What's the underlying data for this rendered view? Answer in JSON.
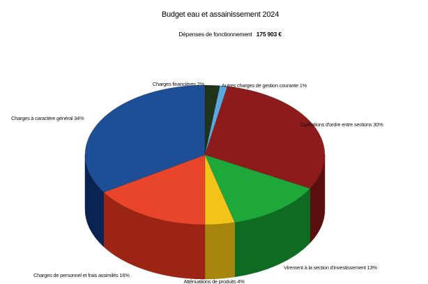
{
  "chart_data": {
    "type": "pie",
    "title": "Budget eau et assainissement 2024",
    "subtitle": {
      "label": "Dépenses de fonctionnement",
      "amount": "175 903 €"
    },
    "start_category": "Charges financières",
    "slices": [
      {
        "label": "Charges financières 2%",
        "category": "Charges financières",
        "value": 2,
        "color": "#1f3319",
        "side_color": "#0f1a0c"
      },
      {
        "label": "Autres charges de gestion courante 1%",
        "category": "Autres charges de gestion courante",
        "value": 1,
        "color": "#5aa8e0",
        "side_color": "#2d6a94"
      },
      {
        "label": "Opérations d'ordre entre sections 30%",
        "category": "Opérations d'ordre entre sections",
        "value": 30,
        "color": "#8e1b1b",
        "side_color": "#5c0f0f"
      },
      {
        "label": "Virement à la section d'investissement 13%",
        "category": "Virement à la section d'investissement",
        "value": 13,
        "color": "#1fa83a",
        "side_color": "#0f6a22"
      },
      {
        "label": "Atténuations de produits 4%",
        "category": "Atténuations de produits",
        "value": 4,
        "color": "#f2c318",
        "side_color": "#a8860d"
      },
      {
        "label": "Charges de personnel et frais assimilés 16%",
        "category": "Charges de personnel et frais assimilés",
        "value": 16,
        "color": "#e8452b",
        "side_color": "#9c2414"
      },
      {
        "label": "Charges à caractère général 34%",
        "category": "Charges à caractère général",
        "value": 34,
        "color": "#1e4e96",
        "side_color": "#0b2352"
      }
    ]
  }
}
